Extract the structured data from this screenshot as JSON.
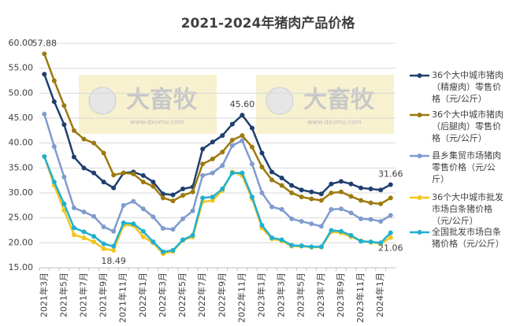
{
  "chart_data": {
    "type": "line",
    "title": "2021-2024年猪肉产品价格",
    "watermark": "大畜牧",
    "watermark_url": "www.dxumu.com",
    "categories": [
      "2021年3月",
      null,
      "2021年5月",
      null,
      "2021年7月",
      null,
      "2021年9月",
      null,
      "2021年11月",
      null,
      "2022年1月",
      null,
      "2022年3月",
      null,
      "2022年5月",
      null,
      "2022年7月",
      null,
      "2022年9月",
      null,
      "2022年11月",
      null,
      "2023年1月",
      null,
      "2023年3月",
      null,
      "2023年5月",
      null,
      "2023年7月",
      null,
      "2023年9月",
      null,
      "2023年11月",
      null,
      "2024年1月",
      null
    ],
    "ylim": [
      15,
      60
    ],
    "yticks": [
      {
        "value": 15,
        "label": "15.00"
      },
      {
        "value": 20,
        "label": "20.00"
      },
      {
        "value": 25,
        "label": "25.00"
      },
      {
        "value": 30,
        "label": "30.00"
      },
      {
        "value": 35,
        "label": "35.00"
      },
      {
        "value": 40,
        "label": "40.00"
      },
      {
        "value": 45,
        "label": "45.00"
      },
      {
        "value": 50,
        "label": "50.00"
      },
      {
        "value": 55,
        "label": "55.00"
      },
      {
        "value": 60,
        "label": "60.00"
      }
    ],
    "grid": true,
    "series": [
      {
        "name": "36个大中城市猪肉（精瘦肉）零售价格（元/公斤）",
        "color": "#1f3f6e",
        "values": [
          53.8,
          48.3,
          43.7,
          37.2,
          35.0,
          34.0,
          32.2,
          31.0,
          34.0,
          34.2,
          33.5,
          32.2,
          29.8,
          29.6,
          30.8,
          31.2,
          38.8,
          40.2,
          41.5,
          43.8,
          45.6,
          43.0,
          38.0,
          34.2,
          33.0,
          31.5,
          30.6,
          30.2,
          29.8,
          31.8,
          32.3,
          31.8,
          31.0,
          30.8,
          30.6,
          31.66
        ],
        "value_labels": [
          null,
          null,
          null,
          null,
          null,
          null,
          null,
          null,
          null,
          null,
          null,
          null,
          null,
          null,
          null,
          null,
          null,
          null,
          null,
          null,
          "45.60",
          null,
          null,
          null,
          null,
          null,
          null,
          null,
          null,
          null,
          null,
          null,
          null,
          null,
          null,
          "31.66"
        ]
      },
      {
        "name": "36个大中城市猪肉（后腿肉）零售价格（元/公斤）",
        "color": "#9c7a0e",
        "values": [
          57.88,
          52.5,
          47.5,
          42.5,
          40.8,
          40.0,
          38.0,
          33.6,
          34.0,
          33.8,
          32.2,
          31.3,
          29.0,
          28.4,
          29.5,
          30.2,
          35.8,
          36.8,
          38.2,
          40.6,
          41.5,
          39.2,
          35.2,
          32.6,
          31.5,
          30.0,
          29.2,
          28.8,
          28.5,
          30.0,
          30.2,
          29.3,
          28.5,
          28.0,
          27.8,
          29.0
        ],
        "value_labels": [
          "57.88",
          null,
          null,
          null,
          null,
          null,
          null,
          null,
          null,
          null,
          null,
          null,
          null,
          null,
          null,
          null,
          null,
          null,
          null,
          null,
          null,
          null,
          null,
          null,
          null,
          null,
          null,
          null,
          null,
          null,
          null,
          null,
          null,
          null,
          null,
          null
        ]
      },
      {
        "name": "县乡集贸市场猪肉零售价格（元/公斤）",
        "color": "#7f9bd0",
        "values": [
          45.8,
          39.3,
          33.2,
          27.0,
          26.2,
          25.3,
          23.2,
          22.3,
          27.5,
          28.3,
          26.8,
          25.2,
          22.9,
          22.7,
          24.8,
          26.4,
          33.5,
          34.0,
          35.5,
          39.5,
          40.5,
          35.8,
          30.0,
          27.2,
          26.7,
          24.8,
          24.3,
          23.8,
          23.3,
          26.7,
          26.8,
          26.0,
          24.8,
          24.7,
          24.3,
          25.5
        ]
      },
      {
        "name": "36个大中城市批发市场白条猪价格（元/公斤）",
        "color": "#f5c518",
        "values": [
          37.3,
          31.5,
          26.5,
          21.6,
          21.0,
          20.2,
          18.8,
          18.49,
          23.5,
          23.5,
          21.2,
          20.0,
          17.8,
          18.3,
          20.5,
          21.2,
          28.2,
          28.5,
          30.5,
          34.2,
          33.5,
          28.8,
          23.0,
          20.8,
          20.4,
          19.3,
          19.3,
          19.1,
          19.1,
          22.2,
          22.0,
          21.2,
          20.4,
          20.1,
          19.8,
          21.06
        ],
        "value_labels": [
          null,
          null,
          null,
          null,
          null,
          null,
          null,
          "18.49",
          null,
          null,
          null,
          null,
          null,
          null,
          null,
          null,
          null,
          null,
          null,
          null,
          null,
          null,
          null,
          null,
          null,
          null,
          null,
          null,
          null,
          null,
          null,
          null,
          null,
          null,
          null,
          "21.06"
        ]
      },
      {
        "name": "全国批发市场白条猪价格（元/公斤）",
        "color": "#1fb0d0",
        "values": [
          37.3,
          32.2,
          27.8,
          23.0,
          22.2,
          21.3,
          19.8,
          19.3,
          24.0,
          23.8,
          22.3,
          20.2,
          18.2,
          18.5,
          20.6,
          21.5,
          29.0,
          29.2,
          30.8,
          34.0,
          34.0,
          29.2,
          23.5,
          21.0,
          20.6,
          19.5,
          19.4,
          19.2,
          19.2,
          22.5,
          22.3,
          21.5,
          20.3,
          20.2,
          20.0,
          22.0
        ]
      }
    ]
  }
}
